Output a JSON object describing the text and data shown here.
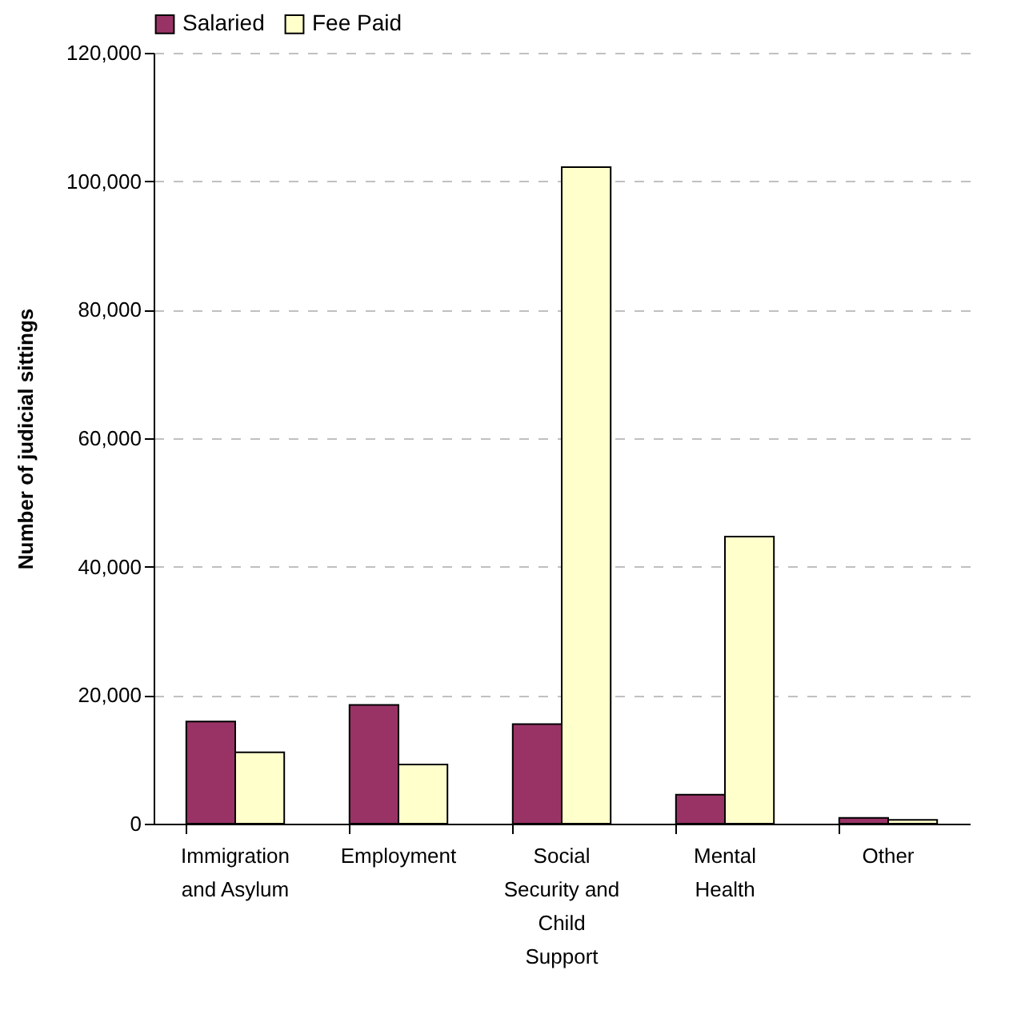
{
  "chart_data": {
    "type": "bar",
    "ylabel": "Number of judicial sittings",
    "categories": [
      "Immigration and Asylum",
      "Employment",
      "Social Security and Child Support",
      "Mental Health",
      "Other"
    ],
    "series": [
      {
        "name": "Salaried",
        "color": "#993366",
        "values": [
          15900,
          18500,
          15500,
          4500,
          900
        ]
      },
      {
        "name": "Fee Paid",
        "color": "#ffffcc",
        "values": [
          11100,
          9200,
          102200,
          44700,
          600
        ]
      }
    ],
    "ylim": [
      0,
      120000
    ],
    "yticks": [
      0,
      {
        "value": 20000,
        "label": "20,000"
      },
      {
        "value": 40000,
        "label": "40,000"
      },
      {
        "value": 60000,
        "label": "60,000"
      },
      {
        "value": 80000,
        "label": "80,000"
      },
      {
        "value": 100000,
        "label": "100,000"
      },
      {
        "value": 120000,
        "label": "120,000"
      }
    ],
    "grid": "y",
    "legend": "top"
  }
}
